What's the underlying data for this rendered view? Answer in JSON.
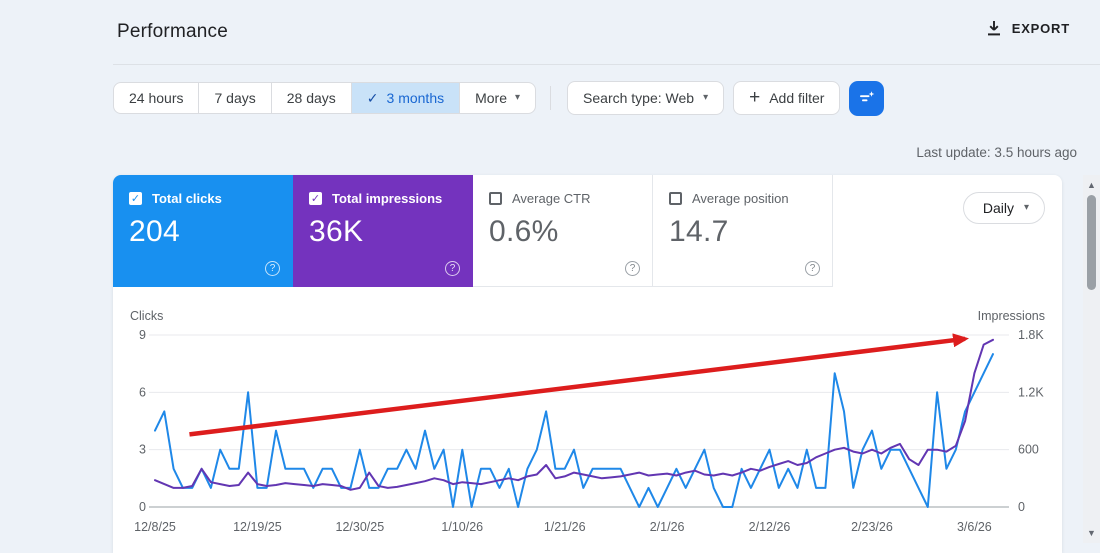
{
  "header": {
    "title": "Performance",
    "export_label": "EXPORT"
  },
  "toolbar": {
    "ranges": [
      {
        "label": "24 hours",
        "selected": false
      },
      {
        "label": "7 days",
        "selected": false
      },
      {
        "label": "28 days",
        "selected": false
      },
      {
        "label": "3 months",
        "selected": true
      },
      {
        "label": "More",
        "selected": false
      }
    ],
    "search_type_label": "Search type: Web",
    "add_filter_label": "Add filter"
  },
  "status": {
    "last_update": "Last update: 3.5 hours ago"
  },
  "metrics": [
    {
      "label": "Total clicks",
      "value": "204",
      "checked": true,
      "color": "#1890f0"
    },
    {
      "label": "Total impressions",
      "value": "36K",
      "checked": true,
      "color": "#7433be"
    },
    {
      "label": "Average CTR",
      "value": "0.6%",
      "checked": false
    },
    {
      "label": "Average position",
      "value": "14.7",
      "checked": false
    }
  ],
  "granularity": {
    "label": "Daily"
  },
  "icons": {
    "check": "✓",
    "caret": "▾",
    "plus": "+",
    "help": "?",
    "up_arrow": "▲",
    "down_arrow": "▼"
  },
  "chart_data": {
    "type": "line",
    "start_date": "12/8/25",
    "end_date": "3/8/26",
    "days": 91,
    "grid": true,
    "x_tick_labels": [
      {
        "label": "12/8/25",
        "day": 0
      },
      {
        "label": "12/19/25",
        "day": 11
      },
      {
        "label": "12/30/25",
        "day": 22
      },
      {
        "label": "1/10/26",
        "day": 33
      },
      {
        "label": "1/21/26",
        "day": 44
      },
      {
        "label": "2/1/26",
        "day": 55
      },
      {
        "label": "2/12/26",
        "day": 66
      },
      {
        "label": "2/23/26",
        "day": 77
      },
      {
        "label": "3/6/26",
        "day": 88
      }
    ],
    "y_left": {
      "title": "Clicks",
      "max": 9,
      "ticks": [
        {
          "label": "0",
          "v": 0
        },
        {
          "label": "3",
          "v": 3
        },
        {
          "label": "6",
          "v": 6
        },
        {
          "label": "9",
          "v": 9
        }
      ]
    },
    "y_right": {
      "title": "Impressions",
      "max": 1800,
      "ticks": [
        {
          "label": "0",
          "v": 0
        },
        {
          "label": "600",
          "v": 600
        },
        {
          "label": "1.2K",
          "v": 1200
        },
        {
          "label": "1.8K",
          "v": 1800
        }
      ]
    },
    "series": [
      {
        "name": "Total clicks",
        "axis": "left",
        "color": "#1f88e8",
        "total": 204,
        "values": [
          4,
          5,
          2,
          1,
          1,
          2,
          1,
          3,
          2,
          2,
          6,
          1,
          1,
          4,
          2,
          2,
          2,
          1,
          2,
          2,
          1,
          1,
          3,
          1,
          1,
          2,
          2,
          3,
          2,
          4,
          2,
          3,
          0,
          3,
          0,
          2,
          2,
          1,
          2,
          0,
          2,
          3,
          5,
          2,
          2,
          3,
          1,
          2,
          2,
          2,
          2,
          1,
          0,
          1,
          0,
          1,
          2,
          1,
          2,
          3,
          1,
          0,
          0,
          2,
          1,
          2,
          3,
          1,
          2,
          1,
          3,
          1,
          1,
          7,
          5,
          1,
          3,
          4,
          2,
          3,
          3,
          2,
          1,
          0,
          6,
          2,
          3,
          5,
          6,
          7,
          8
        ]
      },
      {
        "name": "Total impressions",
        "axis": "right",
        "color": "#6236b2",
        "total": 36000,
        "values": [
          280,
          240,
          200,
          200,
          220,
          400,
          260,
          240,
          220,
          230,
          360,
          240,
          220,
          230,
          250,
          240,
          230,
          220,
          240,
          230,
          220,
          180,
          200,
          360,
          220,
          200,
          210,
          230,
          250,
          270,
          300,
          280,
          240,
          260,
          250,
          240,
          260,
          280,
          300,
          280,
          320,
          340,
          440,
          300,
          320,
          360,
          340,
          320,
          300,
          310,
          320,
          340,
          360,
          330,
          340,
          350,
          330,
          360,
          380,
          340,
          330,
          350,
          330,
          360,
          400,
          380,
          420,
          450,
          480,
          440,
          460,
          520,
          560,
          600,
          620,
          580,
          560,
          600,
          560,
          620,
          660,
          500,
          440,
          600,
          600,
          580,
          640,
          900,
          1400,
          1700,
          1750
        ]
      }
    ],
    "annotation": {
      "shape": "arrow",
      "color": "#dd1d1d",
      "from_day": 3.7,
      "from_clicks": 3.8,
      "to_day": 87,
      "to_clicks": 8.8
    }
  }
}
